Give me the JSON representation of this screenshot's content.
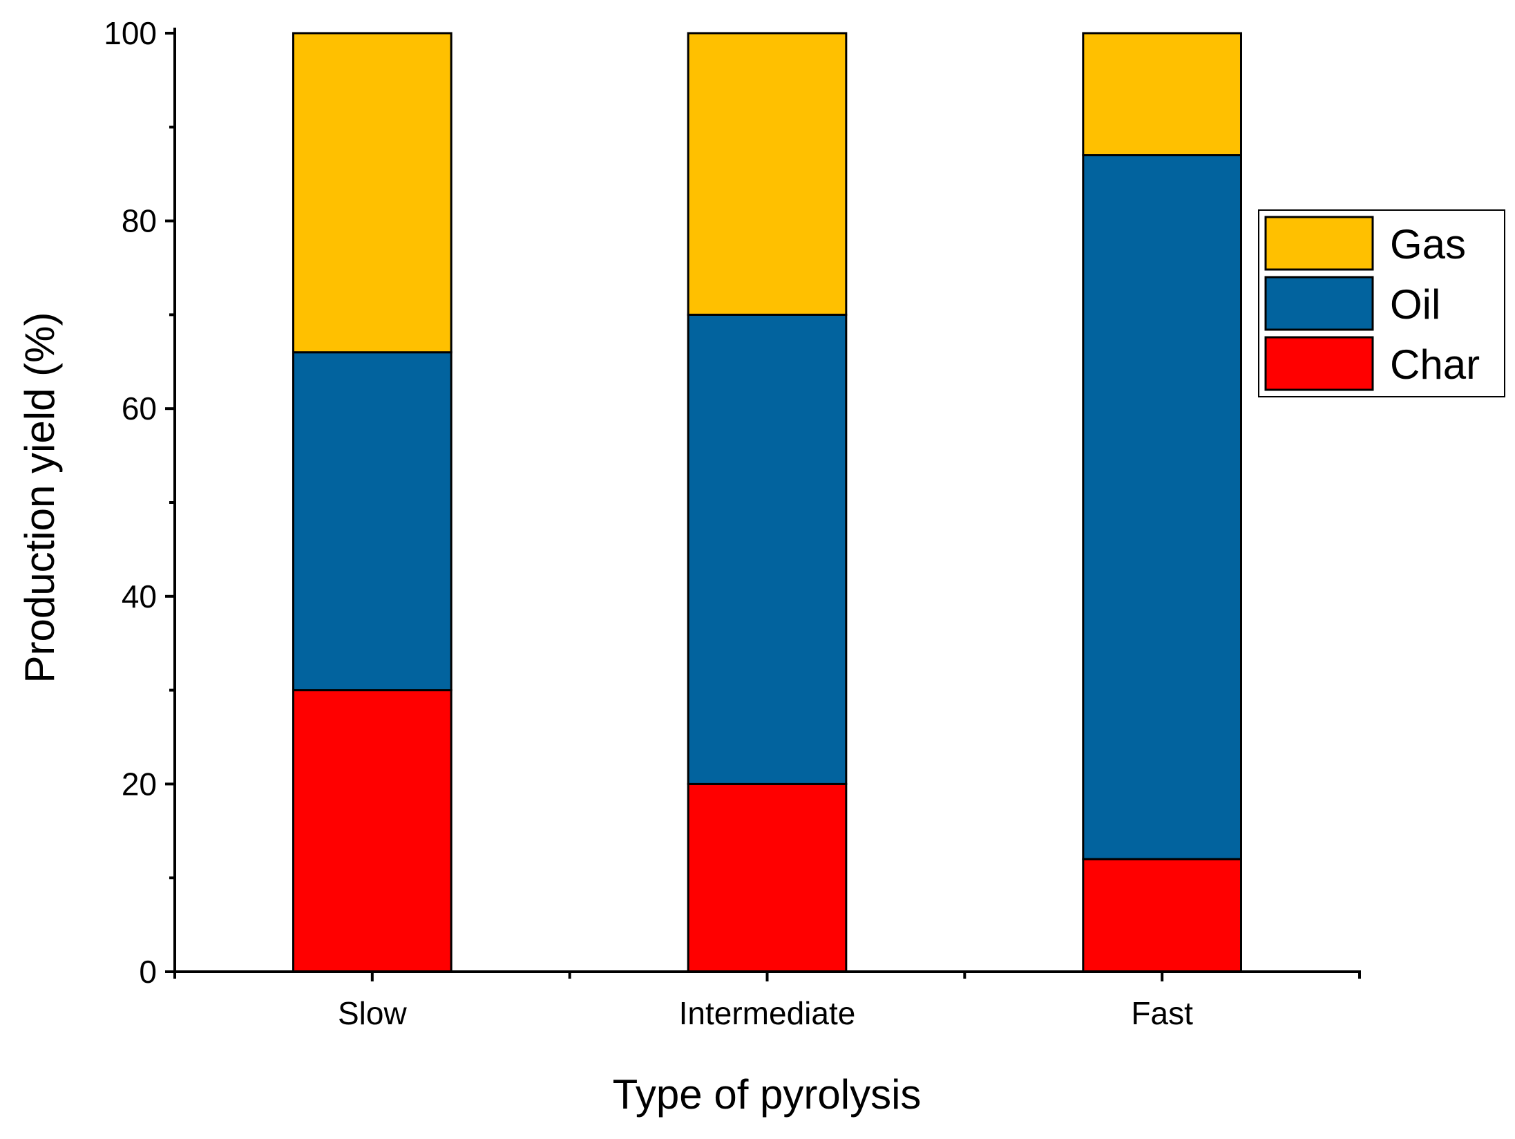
{
  "chart_data": {
    "type": "bar",
    "stacked": true,
    "title": "",
    "xlabel": "Type of pyrolysis",
    "ylabel": "Production yield (%)",
    "categories": [
      "Slow",
      "Intermediate",
      "Fast"
    ],
    "ylim": [
      0,
      100
    ],
    "yticks": [
      "0",
      "20",
      "40",
      "60",
      "80",
      "100"
    ],
    "grid": false,
    "legend_position": "right",
    "series": [
      {
        "name": "Char",
        "color": "#FF0000",
        "values": [
          30,
          20,
          12
        ]
      },
      {
        "name": "Oil",
        "color": "#02639E",
        "values": [
          36,
          50,
          75
        ]
      },
      {
        "name": "Gas",
        "color": "#FFC000",
        "values": [
          34,
          30,
          13
        ]
      }
    ],
    "legend_order": [
      "Gas",
      "Oil",
      "Char"
    ]
  }
}
